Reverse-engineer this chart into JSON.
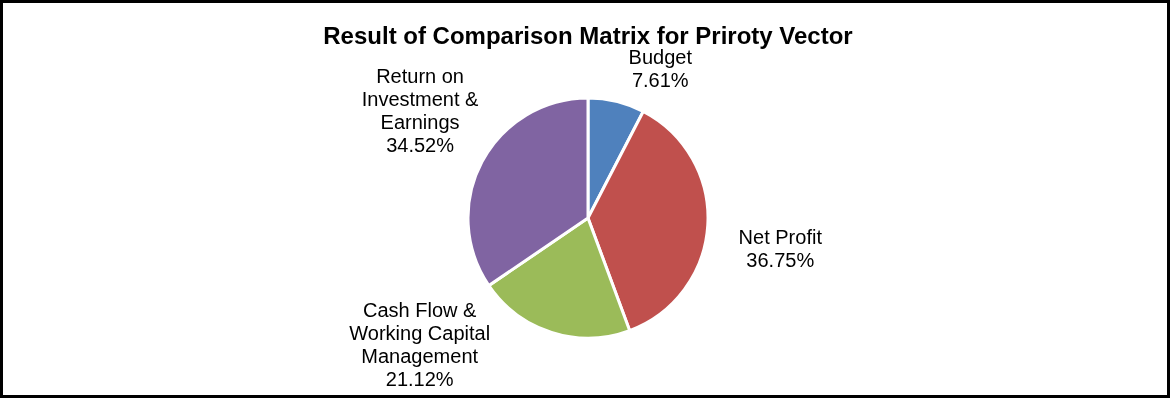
{
  "chart_data": {
    "type": "pie",
    "title": "Result of Comparison Matrix for Priroty Vector",
    "categories": [
      "Budget",
      "Net Profit",
      "Cash Flow & Working Capital Management",
      "Return on Investment & Earnings"
    ],
    "values": [
      7.61,
      36.75,
      21.12,
      34.52
    ],
    "colors": [
      "#4f81bd",
      "#c0504d",
      "#9bbb59",
      "#8064a2"
    ],
    "value_labels": [
      "7.61%",
      "36.75%",
      "21.12%",
      "34.52%"
    ],
    "legend": false
  }
}
